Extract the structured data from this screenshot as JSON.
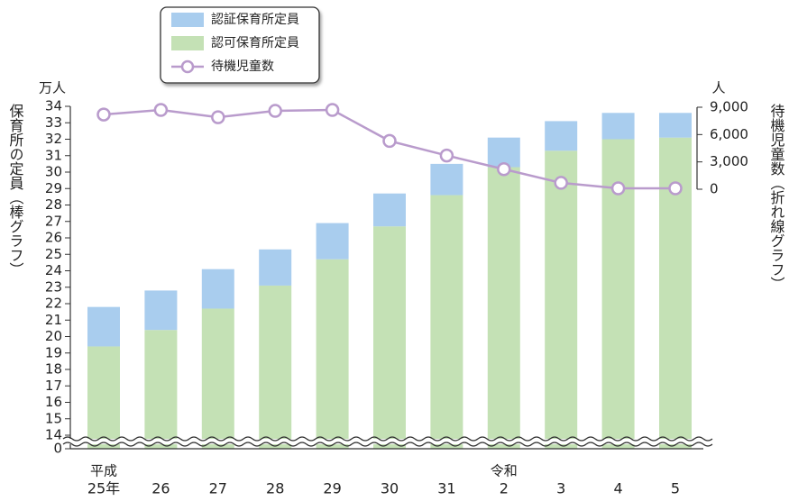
{
  "chart_data": {
    "type": "stacked_bar_line",
    "categories": [
      "25年",
      "26",
      "27",
      "28",
      "29",
      "30",
      "31",
      "2",
      "3",
      "4",
      "5"
    ],
    "era_labels": [
      {
        "text": "平成",
        "index": 0
      },
      {
        "text": "令和",
        "index": 7
      }
    ],
    "y_unit": "万人",
    "y_label": "保育所の定員（棒グラフ）",
    "y2_unit": "人",
    "y2_label": "待機児童数（折れ線グラフ）",
    "ylim": [
      0,
      34
    ],
    "axis_break": [
      0,
      14
    ],
    "yticks": [
      0,
      14,
      15,
      16,
      17,
      18,
      19,
      20,
      21,
      22,
      23,
      24,
      25,
      26,
      27,
      28,
      29,
      30,
      31,
      32,
      33,
      34
    ],
    "y2lim": [
      0,
      9000
    ],
    "y2ticks": [
      0,
      {
        "value": 3000,
        "label": "3,000"
      },
      {
        "value": 6000,
        "label": "6,000"
      },
      {
        "value": 9000,
        "label": "9,000"
      }
    ],
    "series": [
      {
        "name": "認可保育所定員",
        "color": "#c4e1b5",
        "values": [
          19.4,
          20.4,
          21.7,
          23.1,
          24.7,
          26.7,
          28.6,
          30.3,
          31.3,
          32.0,
          32.1
        ]
      },
      {
        "name": "認証保育所定員",
        "color": "#a9cdee",
        "values": [
          2.4,
          2.4,
          2.4,
          2.2,
          2.2,
          2.0,
          1.9,
          1.8,
          1.8,
          1.6,
          1.5
        ]
      },
      {
        "name": "待機児童数",
        "color": "#b99bcc",
        "axis": "y2",
        "values": [
          8200,
          8700,
          7900,
          8600,
          8700,
          5300,
          3700,
          2200,
          700,
          100,
          100
        ]
      }
    ],
    "legend_order": [
      1,
      0,
      2
    ]
  }
}
